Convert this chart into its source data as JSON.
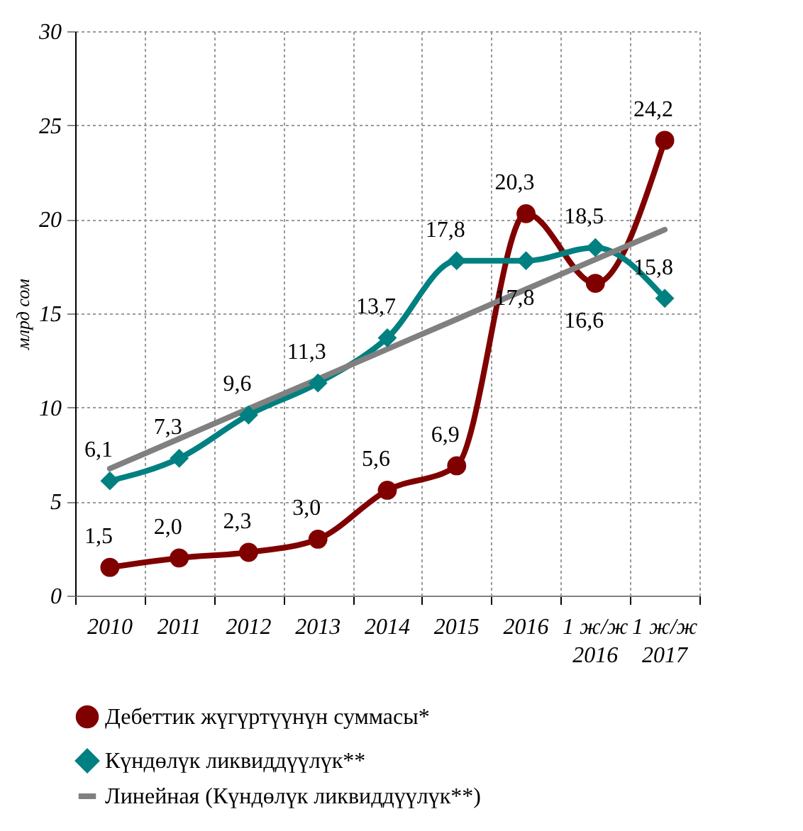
{
  "chart_data": {
    "type": "line",
    "ylabel": "млрд сом",
    "categories": [
      "2010",
      "2011",
      "2012",
      "2013",
      "2014",
      "2015",
      "2016",
      "1 ж/ж 2016",
      "1 ж/ж 2017"
    ],
    "series": [
      {
        "name": "Дебеттик жүгүртүүнүн суммасы*",
        "color": "#800000",
        "marker": "circle",
        "values": [
          1.5,
          2.0,
          2.3,
          3.0,
          5.6,
          6.9,
          20.3,
          16.6,
          24.2
        ],
        "value_labels": [
          "1,5",
          "2,0",
          "2,3",
          "3,0",
          "5,6",
          "6,9",
          "20,3",
          "16,6",
          "24,2"
        ]
      },
      {
        "name": "Күндөлүк ликвиддүүлүк**",
        "color": "#008080",
        "marker": "diamond",
        "values": [
          6.1,
          7.3,
          9.6,
          11.3,
          13.7,
          17.8,
          17.8,
          18.5,
          15.8
        ],
        "value_labels": [
          "6,1",
          "7,3",
          "9,6",
          "11,3",
          "13,7",
          "17,8",
          "17,8",
          "18,5",
          "15,8"
        ]
      },
      {
        "name": "Линейная (Күндөлүк ликвиддүүлүк**)",
        "color": "#808080",
        "marker": "none",
        "values": [
          6.75,
          8.34,
          9.93,
          11.51,
          13.1,
          14.69,
          16.28,
          17.87,
          19.45
        ]
      }
    ],
    "ylim": [
      0,
      30
    ],
    "yticks": [
      0,
      5,
      10,
      15,
      20,
      25,
      30
    ],
    "grid": true,
    "legend": "bottom"
  }
}
